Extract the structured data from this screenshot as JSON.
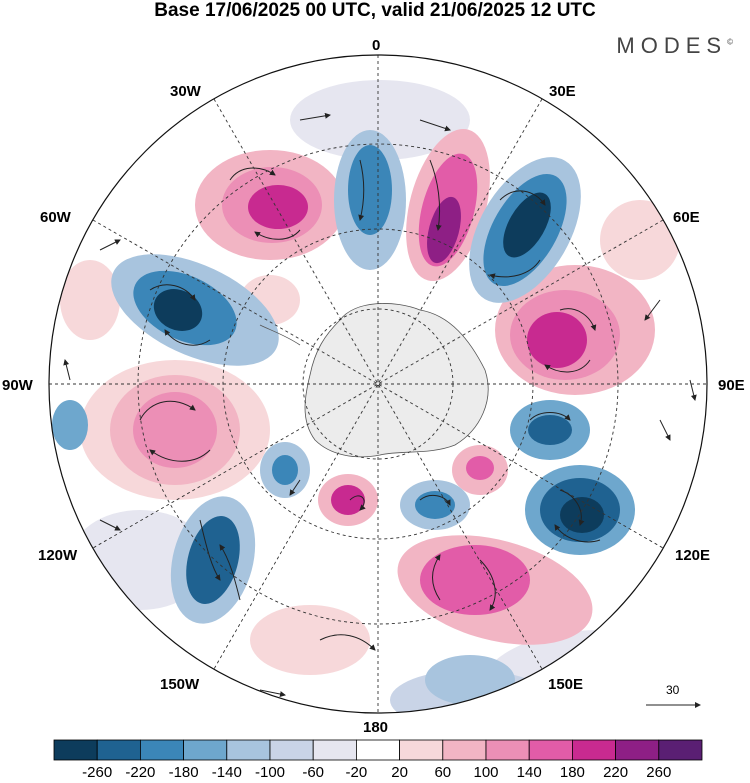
{
  "header": {
    "title": "Base 17/06/2025 00 UTC, valid 21/06/2025 12 UTC",
    "brand": "MODES",
    "brand_mark": "©"
  },
  "map": {
    "projection": "south-polar-stereographic",
    "longitude_labels": {
      "top": "0",
      "right_upper_30": "30E",
      "right_60": "60E",
      "right": "90E",
      "right_120": "120E",
      "right_150": "150E",
      "bottom": "180",
      "left_150": "150W",
      "left_120": "120W",
      "left": "90W",
      "left_60": "60W",
      "left_30": "30W"
    },
    "reference_vector_label": "30"
  },
  "colorbar": {
    "colors": [
      "#0d3c5c",
      "#1f6291",
      "#3b86b8",
      "#6ea7cd",
      "#a8c4de",
      "#c9d4e7",
      "#e6e6f0",
      "#ffffff",
      "#f7d8da",
      "#f2b5c4",
      "#ec8fb6",
      "#e25ca8",
      "#c82a90",
      "#8e1f85",
      "#5a1f73"
    ],
    "labels": [
      "-260",
      "-220",
      "-180",
      "-140",
      "-100",
      "-60",
      "-20",
      "20",
      "60",
      "100",
      "140",
      "180",
      "220",
      "260"
    ]
  }
}
